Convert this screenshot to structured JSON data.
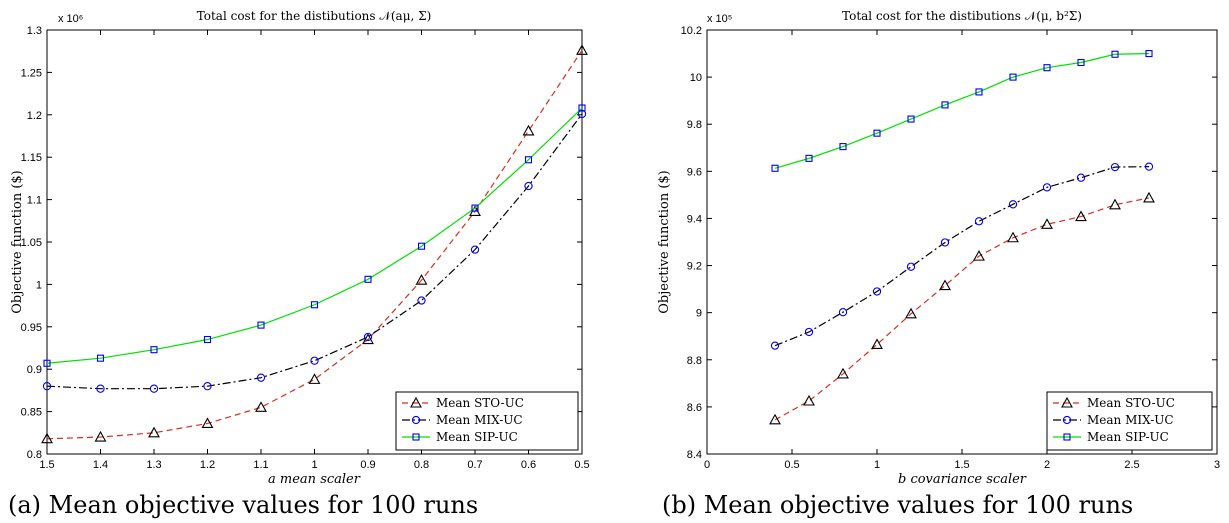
{
  "chart_data": [
    {
      "type": "line",
      "title": "Total cost for the distibutions 𝒩(aμ, Σ)",
      "xlabel": "a mean scaler",
      "ylabel": "Objective function ($)",
      "exponent_label": "x 10⁶",
      "caption": "(a) Mean objective values for 100 runs",
      "x_reversed": true,
      "xlim": [
        0.5,
        1.5
      ],
      "ylim": [
        0.8,
        1.3
      ],
      "xticks": [
        1.5,
        1.4,
        1.3,
        1.2,
        1.1,
        1,
        0.9,
        0.8,
        0.7,
        0.6,
        0.5
      ],
      "xtick_labels": [
        "1.5",
        "1.4",
        "1.3",
        "1.2",
        "1.1",
        "1",
        "0.9",
        "0.8",
        "0.7",
        "0.6",
        "0.5"
      ],
      "yticks": [
        0.8,
        0.85,
        0.9,
        0.95,
        1,
        1.05,
        1.1,
        1.15,
        1.2,
        1.25,
        1.3
      ],
      "ytick_labels": [
        "0.8",
        "0.85",
        "0.9",
        "0.95",
        "1",
        "1.05",
        "1.1",
        "1.15",
        "1.2",
        "1.25",
        "1.3"
      ],
      "grid": false,
      "legend_position": "bottom-right",
      "x": [
        1.5,
        1.4,
        1.3,
        1.2,
        1.1,
        1.0,
        0.9,
        0.8,
        0.7,
        0.6,
        0.5
      ],
      "series": [
        {
          "name": "Mean STO-UC",
          "values": [
            0.818,
            0.82,
            0.825,
            0.836,
            0.855,
            0.888,
            0.935,
            1.005,
            1.086,
            1.181,
            1.276
          ],
          "color": "#d62f1f",
          "dash": "6,4",
          "marker": "triangle"
        },
        {
          "name": "Mean MIX-UC",
          "values": [
            0.88,
            0.877,
            0.877,
            0.88,
            0.89,
            0.91,
            0.938,
            0.981,
            1.041,
            1.116,
            1.201
          ],
          "color": "#000000",
          "dash": "8,3,2,3",
          "marker": "circle"
        },
        {
          "name": "Mean SIP-UC",
          "values": [
            0.907,
            0.913,
            0.923,
            0.935,
            0.952,
            0.976,
            1.006,
            1.045,
            1.09,
            1.147,
            1.208
          ],
          "color": "#00e000",
          "dash": "",
          "marker": "square"
        }
      ]
    },
    {
      "type": "line",
      "title": "Total cost for the distibutions 𝒩(μ, b²Σ)",
      "xlabel": "b covariance scaler",
      "ylabel": "Objective function ($)",
      "exponent_label": "x 10⁵",
      "caption": "(b) Mean objective values for 100 runs",
      "x_reversed": false,
      "xlim": [
        0,
        3
      ],
      "ylim": [
        8.4,
        10.2
      ],
      "xticks": [
        0,
        0.5,
        1,
        1.5,
        2,
        2.5,
        3
      ],
      "xtick_labels": [
        "0",
        "0.5",
        "1",
        "1.5",
        "2",
        "2.5",
        "3"
      ],
      "yticks": [
        8.4,
        8.6,
        8.8,
        9.0,
        9.2,
        9.4,
        9.6,
        9.8,
        10.0,
        10.2
      ],
      "ytick_labels": [
        "8.4",
        "8.6",
        "8.8",
        "9",
        "9.2",
        "9.4",
        "9.6",
        "9.8",
        "10",
        "10.2"
      ],
      "grid": false,
      "legend_position": "bottom-right",
      "x": [
        0.4,
        0.6,
        0.8,
        1.0,
        1.2,
        1.4,
        1.6,
        1.8,
        2.0,
        2.2,
        2.4,
        2.6
      ],
      "series": [
        {
          "name": "Mean STO-UC",
          "values": [
            8.545,
            8.625,
            8.74,
            8.865,
            8.995,
            9.115,
            9.24,
            9.318,
            9.375,
            9.408,
            9.458,
            9.487
          ],
          "color": "#d62f1f",
          "dash": "6,4",
          "marker": "triangle"
        },
        {
          "name": "Mean MIX-UC",
          "values": [
            8.86,
            8.918,
            9.002,
            9.09,
            9.195,
            9.298,
            9.388,
            9.46,
            9.532,
            9.573,
            9.618,
            9.62
          ],
          "color": "#000000",
          "dash": "8,3,2,3",
          "marker": "circle"
        },
        {
          "name": "Mean SIP-UC",
          "values": [
            9.613,
            9.655,
            9.705,
            9.762,
            9.822,
            9.882,
            9.937,
            10.0,
            10.04,
            10.062,
            10.097,
            10.1
          ],
          "color": "#00e000",
          "dash": "",
          "marker": "square"
        }
      ]
    }
  ]
}
